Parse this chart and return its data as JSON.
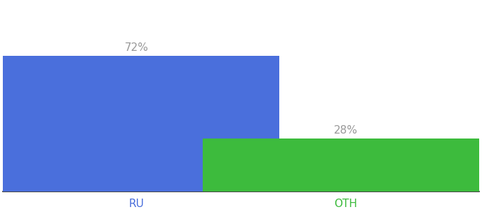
{
  "categories": [
    "RU",
    "OTH"
  ],
  "values": [
    72,
    28
  ],
  "bar_colors": [
    "#4a6fdc",
    "#3dbb3d"
  ],
  "label_texts": [
    "72%",
    "28%"
  ],
  "ylim": [
    0,
    100
  ],
  "background_color": "#ffffff",
  "label_color": "#999999",
  "tick_label_colors": [
    "#4a6fdc",
    "#3dbb3d"
  ],
  "bar_width": 0.6,
  "label_fontsize": 11,
  "tick_fontsize": 11,
  "bar_positions": [
    0.28,
    0.72
  ]
}
